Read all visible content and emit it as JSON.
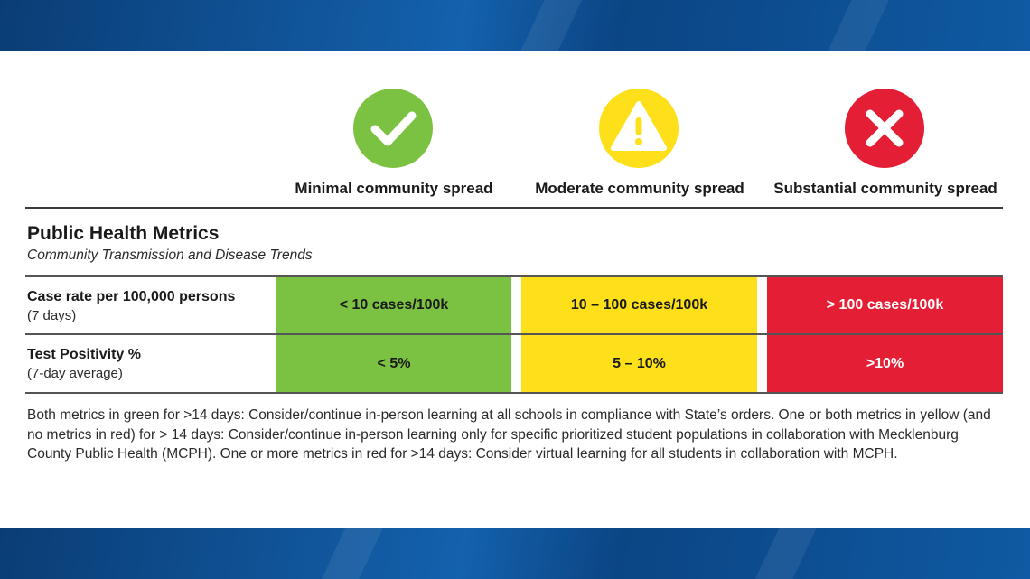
{
  "colors": {
    "green": "#7cc242",
    "yellow": "#fde019",
    "red": "#e31e35"
  },
  "levels": [
    {
      "label": "Minimal community spread",
      "icon": "checkmark-icon"
    },
    {
      "label": "Moderate community spread",
      "icon": "warning-icon"
    },
    {
      "label": "Substantial community spread",
      "icon": "x-mark-icon"
    }
  ],
  "section": {
    "title": "Public Health Metrics",
    "subtitle": "Community Transmission and Disease Trends"
  },
  "metrics": [
    {
      "name": "Case rate per 100,000 persons",
      "note": "(7 days)",
      "values": [
        "< 10 cases/100k",
        "10 – 100 cases/100k",
        "> 100 cases/100k"
      ]
    },
    {
      "name": "Test Positivity %",
      "note": "(7-day average)",
      "values": [
        "< 5%",
        "5 – 10%",
        ">10%"
      ]
    }
  ],
  "footnote": "Both metrics in green for >14 days: Consider/continue in-person learning at all schools in compliance with State’s orders. One or both metrics in yellow (and no metrics in red) for > 14 days: Consider/continue in-person learning only for specific prioritized student populations in collaboration with Mecklenburg County Public Health (MCPH). One or more metrics in red for >14 days: Consider virtual learning for all students in collaboration with MCPH."
}
